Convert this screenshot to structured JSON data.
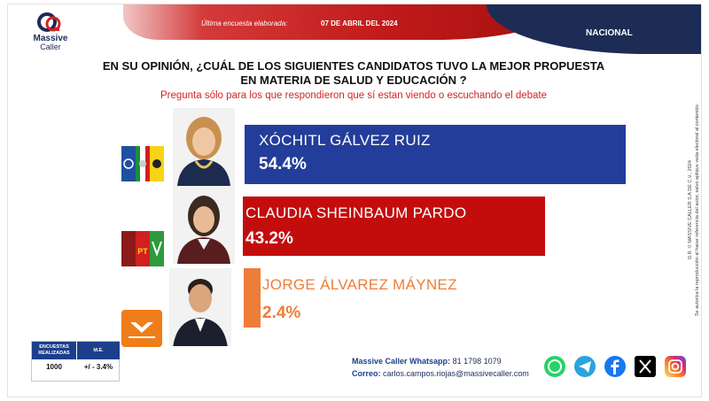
{
  "header": {
    "date_label": "Última encuesta elaborada:",
    "date": "07 DE ABRIL DEL 2024",
    "scope": "NACIONAL",
    "brand_line1": "Massive",
    "brand_line2": "Caller"
  },
  "question": {
    "title_line1": "EN SU OPINIÓN, ¿CUÁL DE LOS SIGUIENTES CANDIDATOS TUVO LA MEJOR PROPUESTA",
    "title_line2": "EN MATERIA DE SALUD Y EDUCACIÓN ?",
    "subtitle": "Pregunta sólo para los que respondieron  que sí estan viendo o escuchando  el debate"
  },
  "chart_data": {
    "type": "bar",
    "orientation": "horizontal",
    "categories": [
      "XÓCHITL GÁLVEZ RUIZ",
      "CLAUDIA SHEINBAUM PARDO",
      "JORGE ÁLVAREZ MÁYNEZ"
    ],
    "values": [
      54.4,
      43.2,
      2.4
    ],
    "value_labels": [
      "54.4%",
      "43.2%",
      "2.4%"
    ],
    "colors": [
      "#233d9a",
      "#c30d0d",
      "#ee7d3a"
    ],
    "text_colors": [
      "#ffffff",
      "#ffffff",
      "#ee7d3a"
    ],
    "xlim": [
      0,
      54.4
    ]
  },
  "party_logos": [
    [
      "PAN",
      "PRI",
      "PRD"
    ],
    [
      "MORENA",
      "PT",
      "VERDE"
    ],
    [
      "MOVIMIENTO CIUDADANO"
    ]
  ],
  "methodology": {
    "col1_header": "ENCUESTAS REALIZADAS",
    "col2_header": "M.E.",
    "col1_value": "1000",
    "col2_value": "+/ - 3.4%"
  },
  "contact": {
    "whatsapp_label": "Massive Caller Whatsapp:",
    "whatsapp_value": "81 1798 1079",
    "email_label": "Correo:",
    "email_value": "carlos.campos.riojas@massivecaller.com"
  },
  "social_icons": [
    "whatsapp-icon",
    "telegram-icon",
    "facebook-icon",
    "x-icon",
    "instagram-icon"
  ],
  "side_note": {
    "line1": "D.R. © MASSIVE CALLER S.A DE C.V., 2024",
    "line2": "Se autoriza la reproducción al hacer referencia del autor, salvo aplique veda electoral al contenido."
  }
}
